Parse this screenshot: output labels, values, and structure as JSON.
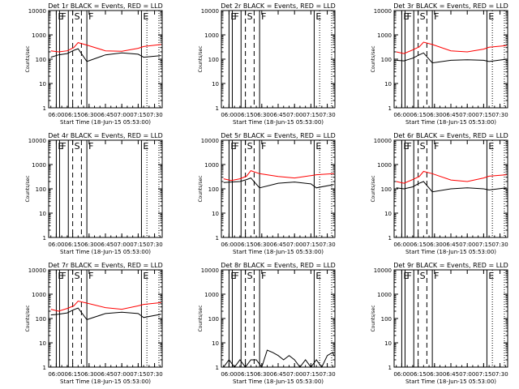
{
  "colors": {
    "events": "#000000",
    "lld": "#ff0000",
    "background": "#ffffff",
    "axes": "#000000"
  },
  "shared": {
    "xlabel": "Start Time (18-Jun-15 05:53:00)",
    "ylabel": "Counts/sec",
    "x_ticks": [
      "06:00",
      "06:15",
      "06:30",
      "06:45",
      "07:00",
      "07:15",
      "07:30"
    ],
    "x_range": [
      "05:53",
      "07:37"
    ],
    "y_ticks": [
      "1",
      "10",
      "100",
      "1000",
      "10000"
    ],
    "y_range": [
      1,
      10000
    ],
    "y_scale": "log",
    "markers": [
      {
        "label": "E",
        "time": "06:00",
        "style": "solid"
      },
      {
        "label": "F",
        "time": "06:03",
        "style": "solid"
      },
      {
        "label": "",
        "time": "06:11",
        "style": "solid"
      },
      {
        "label": "S",
        "time": "06:15",
        "style": "dashed"
      },
      {
        "label": "",
        "time": "06:23",
        "style": "dashed"
      },
      {
        "label": "F",
        "time": "06:28",
        "style": "solid"
      },
      {
        "label": "E",
        "time": "07:18",
        "style": "solid"
      },
      {
        "label": "",
        "time": "07:23",
        "style": "dotted"
      },
      {
        "label": "",
        "time": "07:34",
        "style": "dotted"
      }
    ]
  },
  "chart_data": [
    {
      "type": "line",
      "title": "Det 1r BLACK = Events, RED = LLD",
      "series": [
        {
          "color": "black",
          "x": [
            "05:55",
            "06:02",
            "06:10",
            "06:16",
            "06:20",
            "06:28",
            "06:45",
            "07:00",
            "07:15",
            "07:20",
            "07:36"
          ],
          "y": [
            120,
            150,
            170,
            230,
            270,
            80,
            150,
            180,
            160,
            120,
            140
          ]
        },
        {
          "color": "red",
          "x": [
            "05:55",
            "06:02",
            "06:10",
            "06:16",
            "06:20",
            "06:28",
            "06:45",
            "07:00",
            "07:15",
            "07:20",
            "07:36"
          ],
          "y": [
            220,
            200,
            220,
            300,
            480,
            380,
            220,
            210,
            280,
            330,
            400
          ]
        }
      ]
    },
    {
      "type": "line",
      "title": "Det 2r BLACK = Events, RED = LLD",
      "series": []
    },
    {
      "type": "line",
      "title": "Det 3r BLACK = Events, RED = LLD",
      "series": [
        {
          "color": "black",
          "x": [
            "05:55",
            "06:02",
            "06:10",
            "06:16",
            "06:20",
            "06:28",
            "06:45",
            "07:00",
            "07:15",
            "07:20",
            "07:36"
          ],
          "y": [
            90,
            85,
            110,
            150,
            180,
            70,
            90,
            95,
            90,
            80,
            100
          ]
        },
        {
          "color": "red",
          "x": [
            "05:55",
            "06:02",
            "06:10",
            "06:16",
            "06:20",
            "06:28",
            "06:45",
            "07:00",
            "07:15",
            "07:20",
            "07:36"
          ],
          "y": [
            200,
            170,
            240,
            320,
            500,
            400,
            220,
            200,
            260,
            310,
            360
          ]
        }
      ]
    },
    {
      "type": "line",
      "title": "Det 4r BLACK = Events, RED = LLD",
      "series": []
    },
    {
      "type": "line",
      "title": "Det 5r BLACK = Events, RED = LLD",
      "series": [
        {
          "color": "black",
          "x": [
            "05:55",
            "06:02",
            "06:10",
            "06:16",
            "06:20",
            "06:28",
            "06:45",
            "07:00",
            "07:15",
            "07:20",
            "07:36"
          ],
          "y": [
            180,
            190,
            200,
            240,
            280,
            110,
            170,
            190,
            160,
            110,
            150
          ]
        },
        {
          "color": "red",
          "x": [
            "05:55",
            "06:02",
            "06:10",
            "06:16",
            "06:20",
            "06:28",
            "06:45",
            "07:00",
            "07:15",
            "07:20",
            "07:36"
          ],
          "y": [
            260,
            220,
            260,
            330,
            560,
            420,
            320,
            280,
            350,
            380,
            420
          ]
        }
      ]
    },
    {
      "type": "line",
      "title": "Det 6r BLACK = Events, RED = LLD",
      "series": [
        {
          "color": "black",
          "x": [
            "05:55",
            "06:02",
            "06:10",
            "06:16",
            "06:20",
            "06:28",
            "06:45",
            "07:00",
            "07:15",
            "07:20",
            "07:36"
          ],
          "y": [
            110,
            100,
            120,
            170,
            200,
            75,
            100,
            110,
            100,
            90,
            110
          ]
        },
        {
          "color": "red",
          "x": [
            "05:55",
            "06:02",
            "06:10",
            "06:16",
            "06:20",
            "06:28",
            "06:45",
            "07:00",
            "07:15",
            "07:20",
            "07:36"
          ],
          "y": [
            200,
            170,
            240,
            320,
            520,
            420,
            230,
            200,
            280,
            330,
            380
          ]
        }
      ]
    },
    {
      "type": "line",
      "title": "Det 7r BLACK = Events, RED = LLD",
      "series": [
        {
          "color": "black",
          "x": [
            "05:55",
            "06:02",
            "06:10",
            "06:16",
            "06:20",
            "06:28",
            "06:45",
            "07:00",
            "07:15",
            "07:20",
            "07:36"
          ],
          "y": [
            140,
            150,
            170,
            230,
            270,
            90,
            160,
            180,
            160,
            110,
            150
          ]
        },
        {
          "color": "red",
          "x": [
            "05:55",
            "06:02",
            "06:10",
            "06:16",
            "06:20",
            "06:28",
            "06:45",
            "07:00",
            "07:15",
            "07:20",
            "07:36"
          ],
          "y": [
            240,
            200,
            260,
            330,
            520,
            430,
            280,
            240,
            330,
            380,
            450
          ]
        }
      ]
    },
    {
      "type": "line",
      "title": "Det 8r BLACK = Events, RED = LLD",
      "series": [
        {
          "color": "black",
          "x": [
            "05:55",
            "06:00",
            "06:05",
            "06:10",
            "06:15",
            "06:20",
            "06:25",
            "06:30",
            "06:35",
            "06:40",
            "06:45",
            "06:50",
            "06:55",
            "07:00",
            "07:05",
            "07:10",
            "07:15",
            "07:20",
            "07:25",
            "07:30",
            "07:35",
            "07:36"
          ],
          "y": [
            1,
            2,
            1,
            2,
            1,
            2,
            2,
            1,
            5,
            4,
            3,
            2,
            3,
            2,
            1,
            2,
            1,
            2,
            1,
            3,
            4,
            3
          ]
        }
      ]
    },
    {
      "type": "line",
      "title": "Det 9r BLACK = Events, RED = LLD",
      "series": []
    }
  ]
}
